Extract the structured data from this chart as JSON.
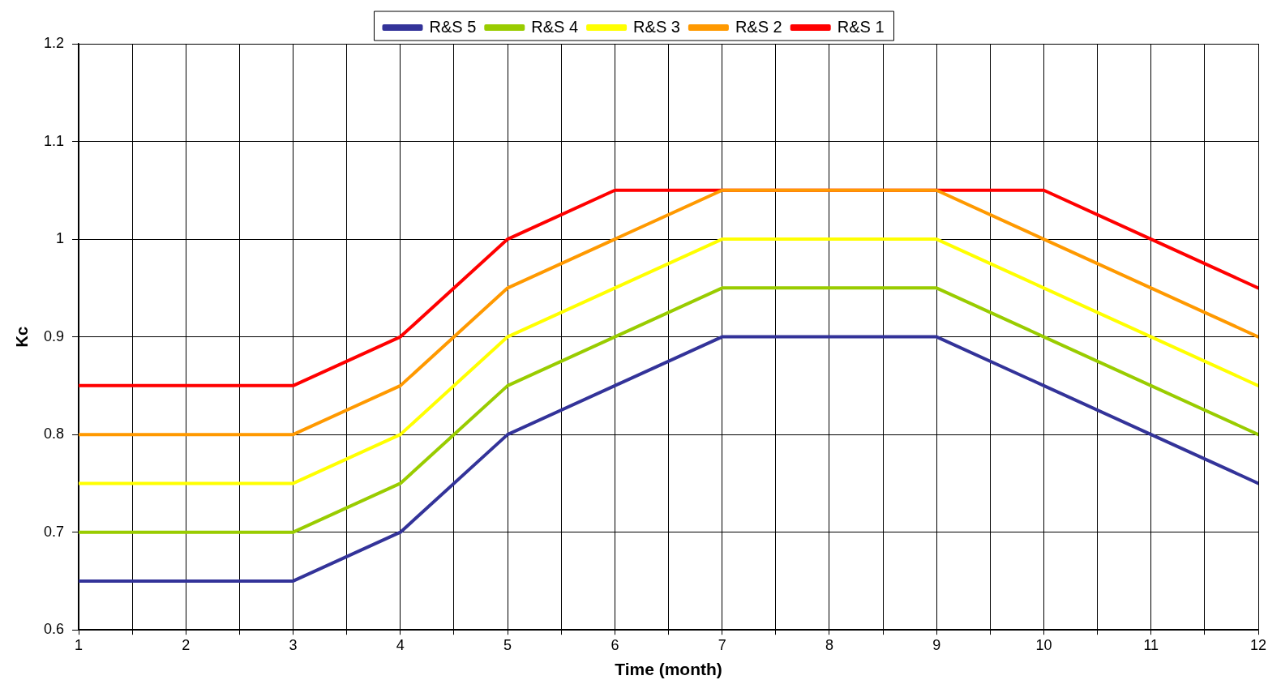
{
  "chart_data": {
    "type": "line",
    "xlabel": "Time (month)",
    "ylabel": "Kc",
    "x": [
      1,
      2,
      3,
      4,
      5,
      6,
      7,
      8,
      9,
      10,
      11,
      12
    ],
    "xlim": [
      1,
      12
    ],
    "xticks": [
      1,
      {
        "value": 1.5,
        "label": null
      },
      2,
      {
        "value": 2.5,
        "label": null
      },
      3,
      {
        "value": 3.5,
        "label": null
      },
      4,
      {
        "value": 4.5,
        "label": null
      },
      5,
      {
        "value": 5.5,
        "label": null
      },
      6,
      {
        "value": 6.5,
        "label": null
      },
      7,
      {
        "value": 7.5,
        "label": null
      },
      8,
      {
        "value": 8.5,
        "label": null
      },
      9,
      {
        "value": 9.5,
        "label": null
      },
      10,
      {
        "value": 10.5,
        "label": null
      },
      11,
      {
        "value": 11.5,
        "label": null
      },
      12
    ],
    "ylim": [
      0.6,
      1.2
    ],
    "yticks": [
      0.6,
      0.7,
      0.8,
      0.9,
      1,
      1.1,
      1.2
    ],
    "grid": true,
    "legend": "top",
    "marker": "none",
    "line_style": "solid",
    "series": [
      {
        "name": "R&S 5",
        "color": "#333399",
        "values": [
          0.65,
          0.65,
          0.65,
          0.7,
          0.8,
          0.85,
          0.9,
          0.9,
          0.9,
          0.85,
          0.8,
          0.75
        ]
      },
      {
        "name": "R&S 4",
        "color": "#99cc00",
        "values": [
          0.7,
          0.7,
          0.7,
          0.75,
          0.85,
          0.9,
          0.95,
          0.95,
          0.95,
          0.9,
          0.85,
          0.8
        ]
      },
      {
        "name": "R&S 3",
        "color": "#ffff00",
        "values": [
          0.75,
          0.75,
          0.75,
          0.8,
          0.9,
          0.95,
          1,
          1,
          1,
          0.95,
          0.9,
          0.85
        ]
      },
      {
        "name": "R&S 2",
        "color": "#ff9900",
        "values": [
          0.8,
          0.8,
          0.8,
          0.85,
          0.95,
          1,
          1.05,
          1.05,
          1.05,
          1,
          0.95,
          0.9
        ]
      },
      {
        "name": "R&S 1",
        "color": "#ff0000",
        "values": [
          0.85,
          0.85,
          0.85,
          0.9,
          1,
          1.05,
          1.05,
          1.05,
          1.05,
          1.05,
          1,
          0.95
        ]
      }
    ]
  }
}
